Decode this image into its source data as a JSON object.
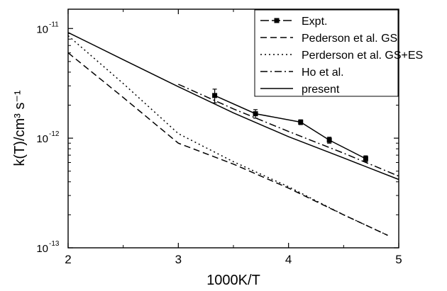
{
  "chart_data": {
    "type": "line",
    "title": "",
    "xlabel": "1000K/T",
    "ylabel": "k(T)/cm³ s⁻¹",
    "y_scale": "log",
    "xlim": [
      2,
      5
    ],
    "ylim": [
      1e-13,
      1.5e-11
    ],
    "x_ticks": [
      {
        "value": 2,
        "label": "2"
      },
      {
        "value": 3,
        "label": "3"
      },
      {
        "value": 4,
        "label": "4"
      },
      {
        "value": 5,
        "label": "5"
      }
    ],
    "y_ticks": [
      {
        "value": 1e-13,
        "label_base": "10",
        "label_exp": "-13"
      },
      {
        "value": 1e-12,
        "label_base": "10",
        "label_exp": "-12"
      },
      {
        "value": 1e-11,
        "label_base": "10",
        "label_exp": "-11"
      }
    ],
    "grid": false,
    "legend_position": "top-right",
    "series": [
      {
        "name": "Expt.",
        "style": "dash-marker",
        "color": "#000000",
        "x": [
          3.33,
          3.7,
          4.11,
          4.37,
          4.7
        ],
        "y": [
          2.45e-12,
          1.67e-12,
          1.4e-12,
          9.6e-13,
          6.5e-13
        ],
        "yerr": [
          3.5e-13,
          1.5e-13,
          7e-14,
          6e-14,
          4e-14
        ]
      },
      {
        "name": "Pederson et al. GS",
        "style": "dash",
        "color": "#000000",
        "x": [
          2.0,
          2.5,
          3.0,
          3.5,
          4.0,
          4.5,
          4.9
        ],
        "y": [
          6e-12,
          2.35e-12,
          9e-13,
          5.8e-13,
          3.5e-13,
          2e-13,
          1.3e-13
        ]
      },
      {
        "name": "Perderson et al. GS+ES",
        "style": "dot",
        "color": "#000000",
        "x": [
          2.0,
          2.5,
          3.0,
          3.5,
          4.0,
          4.5,
          4.9
        ],
        "y": [
          8.6e-12,
          3.15e-12,
          1.1e-12,
          6.1e-13,
          3.6e-13,
          2e-13,
          1.3e-13
        ]
      },
      {
        "name": "Ho et al.",
        "style": "dashdot",
        "color": "#000000",
        "x": [
          3.0,
          3.5,
          4.0,
          4.5,
          5.0
        ],
        "y": [
          3.1e-12,
          1.85e-12,
          1.15e-12,
          7.3e-13,
          4.5e-13
        ]
      },
      {
        "name": "present",
        "style": "solid",
        "color": "#000000",
        "x": [
          2.0,
          2.5,
          3.0,
          3.5,
          4.0,
          4.5,
          5.0
        ],
        "y": [
          9.2e-12,
          5.2e-12,
          2.95e-12,
          1.7e-12,
          1.03e-12,
          6.6e-13,
          4.2e-13
        ]
      }
    ]
  }
}
